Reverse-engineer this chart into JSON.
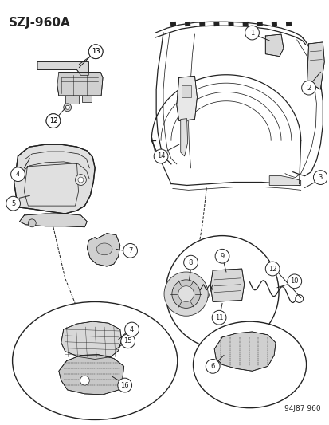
{
  "title": "SZJ-960A",
  "footer": "94J87 960",
  "bg": "#f5f5f5",
  "fg": "#222222",
  "fig_w": 4.14,
  "fig_h": 5.33,
  "dpi": 100
}
